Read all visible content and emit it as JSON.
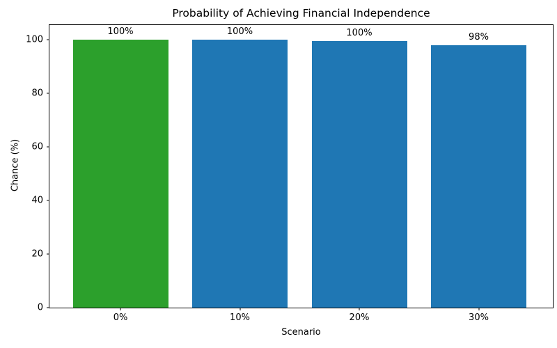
{
  "chart_data": {
    "type": "bar",
    "title": "Probability of Achieving Financial Independence",
    "xlabel": "Scenario",
    "ylabel": "Chance (%)",
    "categories": [
      "0%",
      "10%",
      "20%",
      "30%"
    ],
    "values": [
      100,
      100,
      99.5,
      98
    ],
    "bar_labels": [
      "100%",
      "100%",
      "100%",
      "98%"
    ],
    "bar_colors": [
      "#2ca02c",
      "#1f77b4",
      "#1f77b4",
      "#1f77b4"
    ],
    "yticks": [
      0,
      20,
      40,
      60,
      80,
      100
    ],
    "ylim": [
      0,
      105.5
    ],
    "grid": false,
    "legend": false,
    "background_color": "#ffffff",
    "spine_color": "#000000"
  }
}
